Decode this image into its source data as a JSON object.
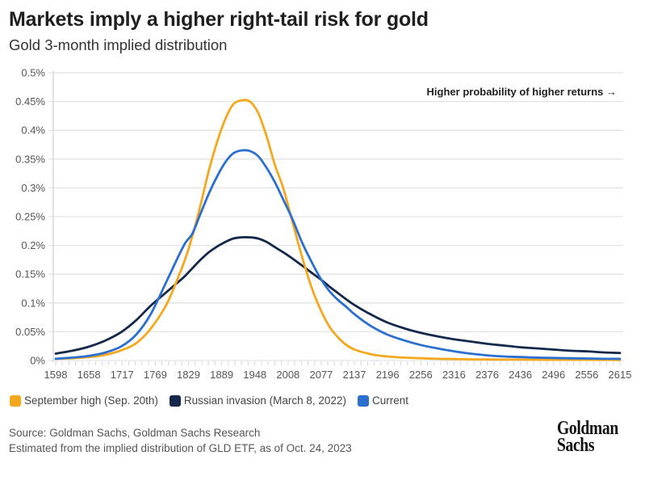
{
  "header": {
    "title": "Markets imply a higher right-tail risk for gold",
    "subtitle": "Gold 3-month implied distribution"
  },
  "chart_data": {
    "type": "line",
    "title": "Markets imply a higher right-tail risk for gold",
    "subtitle": "Gold 3-month implied distribution",
    "xlabel": "",
    "ylabel": "",
    "x_tick_labels": [
      "1598",
      "1658",
      "1717",
      "1769",
      "1829",
      "1889",
      "1948",
      "2008",
      "2077",
      "2137",
      "2196",
      "2256",
      "2316",
      "2376",
      "2436",
      "2496",
      "2556",
      "2615"
    ],
    "y_tick_labels": [
      "0%",
      "0.05%",
      "0.1%",
      "0.15%",
      "0.2%",
      "0.25%",
      "0.3%",
      "0.35%",
      "0.4%",
      "0.45%",
      "0.5%"
    ],
    "ylim": [
      0,
      0.5
    ],
    "xlim": [
      1598,
      2615
    ],
    "grid": true,
    "annotation": "Higher probability of higher returns →",
    "legend_position": "bottom-left",
    "x": [
      1598,
      1628,
      1658,
      1688,
      1717,
      1743,
      1769,
      1799,
      1829,
      1844,
      1859,
      1874,
      1889,
      1904,
      1918,
      1933,
      1948,
      1963,
      1978,
      1993,
      2008,
      2025,
      2042,
      2060,
      2077,
      2092,
      2107,
      2122,
      2137,
      2166,
      2196,
      2226,
      2256,
      2286,
      2316,
      2346,
      2376,
      2406,
      2436,
      2466,
      2496,
      2526,
      2556,
      2586,
      2615
    ],
    "series": [
      {
        "name": "September high (Sep. 20th)",
        "color": "#F5A81C",
        "values": [
          0.003,
          0.004,
          0.006,
          0.01,
          0.018,
          0.03,
          0.055,
          0.1,
          0.17,
          0.215,
          0.27,
          0.33,
          0.38,
          0.42,
          0.445,
          0.452,
          0.45,
          0.43,
          0.39,
          0.34,
          0.3,
          0.24,
          0.18,
          0.125,
          0.085,
          0.058,
          0.04,
          0.027,
          0.019,
          0.011,
          0.007,
          0.005,
          0.004,
          0.003,
          0.0025,
          0.002,
          0.0018,
          0.0016,
          0.0015,
          0.0014,
          0.0013,
          0.0012,
          0.0012,
          0.0011,
          0.001
        ]
      },
      {
        "name": "Russian invasion (March 8, 2022)",
        "color": "#14284B",
        "values": [
          0.012,
          0.017,
          0.024,
          0.035,
          0.05,
          0.07,
          0.095,
          0.12,
          0.145,
          0.16,
          0.175,
          0.188,
          0.198,
          0.206,
          0.212,
          0.214,
          0.214,
          0.212,
          0.206,
          0.197,
          0.188,
          0.177,
          0.165,
          0.152,
          0.14,
          0.128,
          0.117,
          0.106,
          0.096,
          0.08,
          0.066,
          0.056,
          0.048,
          0.042,
          0.037,
          0.033,
          0.029,
          0.026,
          0.023,
          0.021,
          0.019,
          0.017,
          0.016,
          0.014,
          0.013
        ]
      },
      {
        "name": "Current",
        "color": "#2B6FD0",
        "values": [
          0.003,
          0.005,
          0.008,
          0.014,
          0.025,
          0.045,
          0.08,
          0.14,
          0.2,
          0.22,
          0.255,
          0.29,
          0.32,
          0.345,
          0.36,
          0.365,
          0.364,
          0.355,
          0.335,
          0.31,
          0.28,
          0.245,
          0.205,
          0.17,
          0.14,
          0.12,
          0.105,
          0.093,
          0.08,
          0.06,
          0.045,
          0.035,
          0.027,
          0.021,
          0.016,
          0.012,
          0.009,
          0.007,
          0.006,
          0.005,
          0.0045,
          0.004,
          0.0035,
          0.003,
          0.003
        ]
      }
    ]
  },
  "legend": [
    {
      "label": "September high (Sep. 20th)",
      "color": "#F5A81C"
    },
    {
      "label": "Russian invasion (March 8, 2022)",
      "color": "#14284B"
    },
    {
      "label": "Current",
      "color": "#2B6FD0"
    }
  ],
  "footer": {
    "source_line1": "Source: Goldman Sachs, Goldman Sachs Research",
    "source_line2": "Estimated from the implied distribution of GLD ETF, as of Oct. 24, 2023",
    "logo_line1": "Goldman",
    "logo_line2": "Sachs"
  }
}
